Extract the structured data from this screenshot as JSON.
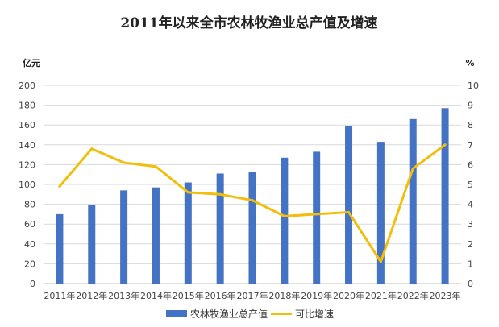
{
  "chart_data": {
    "type": "bar",
    "title": "2011年以来全市农林牧渔业总产值及增速",
    "left_axis_unit": "亿元",
    "right_axis_unit": "%",
    "categories": [
      "2011年",
      "2012年",
      "2013年",
      "2014年",
      "2015年",
      "2016年",
      "2017年",
      "2018年",
      "2019年",
      "2020年",
      "2021年",
      "2022年",
      "2023年"
    ],
    "ylim_left": [
      0,
      200
    ],
    "yticks_left": [
      0,
      20,
      40,
      60,
      80,
      100,
      120,
      140,
      160,
      180,
      200
    ],
    "ylim_right": [
      0,
      10
    ],
    "yticks_right": [
      0,
      1,
      2,
      3,
      4,
      5,
      6,
      7,
      8,
      9,
      10
    ],
    "grid": true,
    "legend_position": "bottom",
    "series": [
      {
        "name": "农林牧渔业总产值",
        "type": "bar",
        "axis": "left",
        "color": "#4472C4",
        "values": [
          70,
          79,
          94,
          97,
          102,
          111,
          113,
          127,
          133,
          159,
          143,
          166,
          177
        ]
      },
      {
        "name": "可比增速",
        "type": "line",
        "axis": "right",
        "color": "#F2BE0A",
        "values": [
          4.9,
          6.8,
          6.1,
          5.9,
          4.6,
          4.5,
          4.2,
          3.4,
          3.5,
          3.6,
          1.1,
          5.8,
          7.0
        ]
      }
    ]
  }
}
